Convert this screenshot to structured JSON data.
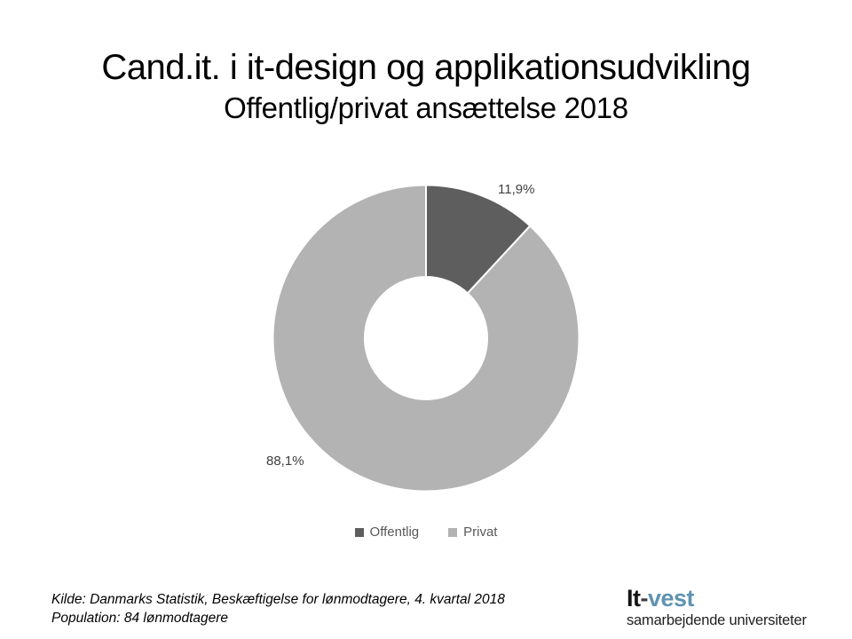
{
  "header": {
    "title": "Cand.it. i it-design og applikationsudvikling",
    "subtitle": "Offentlig/privat ansættelse 2018"
  },
  "chart_data": {
    "type": "pie",
    "subtype": "donut",
    "title": "Cand.it. i it-design og applikationsudvikling — Offentlig/privat ansættelse 2018",
    "categories": [
      "Offentlig",
      "Privat"
    ],
    "values": [
      11.9,
      88.1
    ],
    "point_labels": [
      "11,9%",
      "88,1%"
    ],
    "colors": [
      "#5e5e5e",
      "#b3b3b3"
    ],
    "hole_ratio": 0.4,
    "start_angle_deg": 0,
    "direction": "clockwise",
    "separator_color": "#ffffff",
    "legend_position": "bottom",
    "label_text_color": "#404040",
    "legend_text_color": "#595959"
  },
  "footer": {
    "source_line1": "Kilde: Danmarks Statistik, Beskæftigelse for lønmodtagere, 4. kvartal 2018",
    "source_line2": "Population: 84 lønmodtagere"
  },
  "logo": {
    "prefix": "It",
    "hyphen": "-",
    "suffix": "vest",
    "suffix_color": "#6093b1",
    "tagline": "samarbejdende universiteter"
  }
}
